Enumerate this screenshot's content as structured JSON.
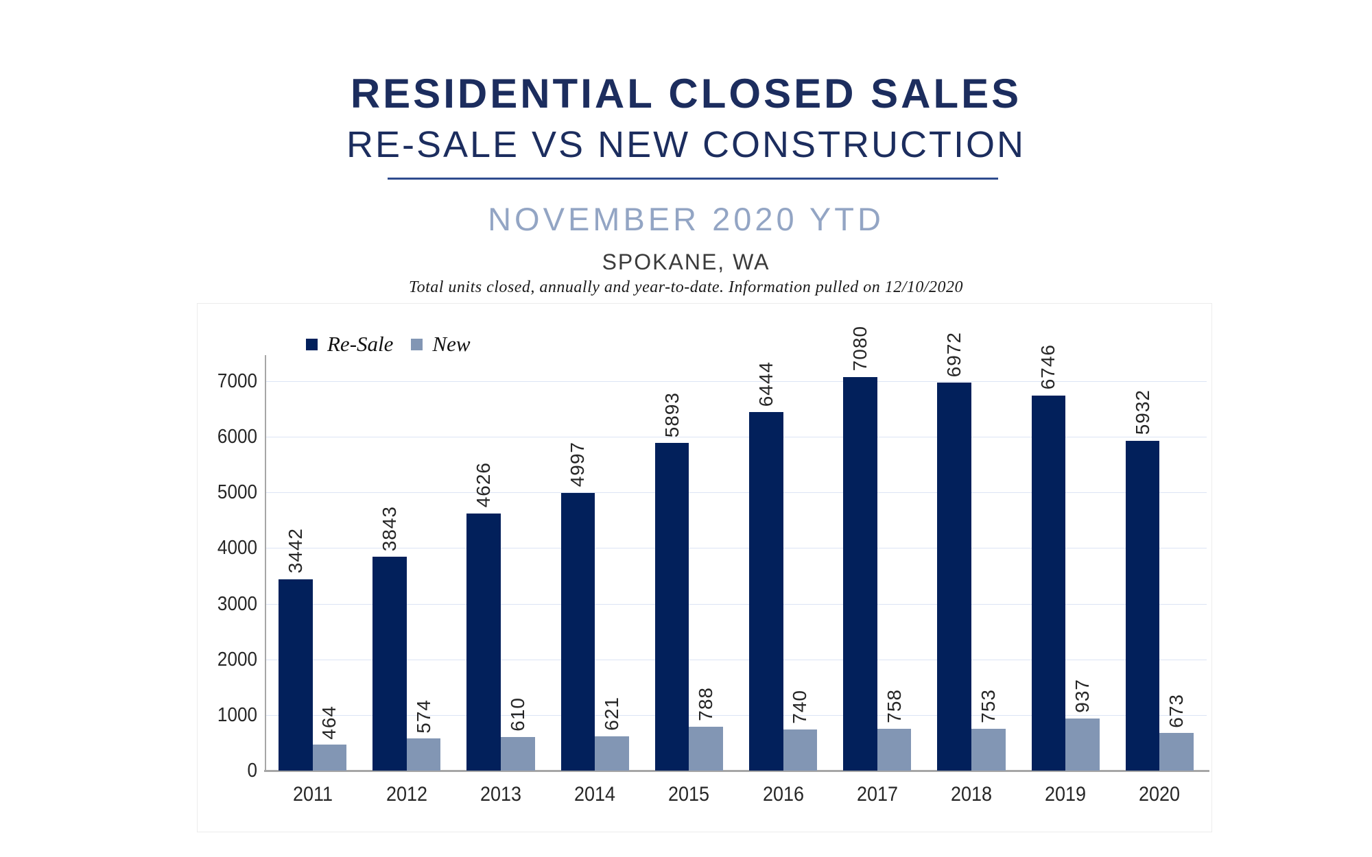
{
  "header": {
    "title": "RESIDENTIAL CLOSED SALES",
    "subtitle": "RE-SALE VS NEW CONSTRUCTION",
    "period": "NOVEMBER 2020 YTD",
    "location": "SPOKANE, WA",
    "note": "Total units closed, annually and year-to-date.  Information pulled on 12/10/2020"
  },
  "colors": {
    "title_navy": "#1C2D5E",
    "divider_navy": "#2F4C8E",
    "period_blue": "#93A5C4",
    "resale_bar": "#02205B",
    "new_bar": "#8296B4",
    "gridline": "#DCE4F5",
    "axis_line": "#A6A6A6",
    "tick_text": "#262626"
  },
  "chart_data": {
    "type": "bar",
    "title": "",
    "xlabel": "",
    "ylabel": "",
    "categories": [
      "2011",
      "2012",
      "2013",
      "2014",
      "2015",
      "2016",
      "2017",
      "2018",
      "2019",
      "2020"
    ],
    "series": [
      {
        "name": "Re-Sale",
        "color": "#02205B",
        "values": [
          3442,
          3843,
          4626,
          4997,
          5893,
          6444,
          7080,
          6972,
          6746,
          5932
        ]
      },
      {
        "name": "New",
        "color": "#8296B4",
        "values": [
          464,
          574,
          610,
          621,
          788,
          740,
          758,
          753,
          937,
          673
        ]
      }
    ],
    "ylim": [
      0,
      7000
    ],
    "yticks": [
      0,
      1000,
      2000,
      3000,
      4000,
      5000,
      6000,
      7000
    ],
    "grid": true,
    "legend_position": "top-left",
    "data_labels": "rotated-90"
  }
}
